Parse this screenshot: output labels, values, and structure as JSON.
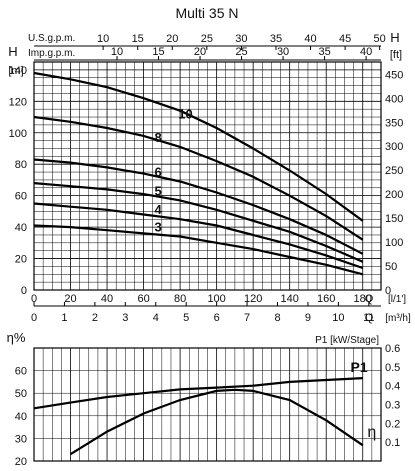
{
  "chart_data": [
    {
      "type": "line",
      "title": "Multi 35 N",
      "y_left_label": "H",
      "y_left_unit": "[m]",
      "y_right_label": "H",
      "y_right_unit": "[ft]",
      "x_label": "Q",
      "x_unit_lpm": "[l/1']",
      "x_unit_m3h": "[m³/h]",
      "usgpm_label": "U.S.g.p.m.",
      "impgpm_label": "Imp.g.p.m.",
      "ylim": [
        0,
        145
      ],
      "xlim": [
        0,
        190
      ],
      "y_ticks": [
        0,
        20,
        40,
        60,
        80,
        100,
        120,
        140
      ],
      "y_ticks_ft": [
        0,
        50,
        100,
        150,
        200,
        250,
        300,
        350,
        400,
        450
      ],
      "x_ticks_lpm": [
        0,
        20,
        40,
        60,
        80,
        100,
        120,
        140,
        160,
        180
      ],
      "x_ticks_m3h": [
        0,
        1,
        2,
        3,
        4,
        5,
        6,
        7,
        8,
        9,
        10,
        11
      ],
      "x_ticks_usgpm": [
        10,
        15,
        20,
        25,
        30,
        35,
        40,
        45,
        50
      ],
      "x_ticks_impgpm": [
        10,
        15,
        20,
        25,
        30,
        35,
        40
      ],
      "grid": true,
      "series": [
        {
          "name": "10",
          "x": [
            0,
            20,
            40,
            60,
            80,
            100,
            120,
            140,
            160,
            180
          ],
          "values": [
            138,
            134,
            129,
            122,
            114,
            103,
            90,
            76,
            61,
            44
          ]
        },
        {
          "name": "8",
          "x": [
            0,
            20,
            40,
            60,
            80,
            100,
            120,
            140,
            160,
            180
          ],
          "values": [
            110,
            107,
            103,
            98,
            91,
            82,
            72,
            60,
            47,
            32
          ]
        },
        {
          "name": "6",
          "x": [
            0,
            20,
            40,
            60,
            80,
            100,
            120,
            140,
            160,
            180
          ],
          "values": [
            83,
            81,
            78,
            74,
            69,
            62,
            54,
            45,
            35,
            23
          ]
        },
        {
          "name": "5",
          "x": [
            0,
            20,
            40,
            60,
            80,
            100,
            120,
            140,
            160,
            180
          ],
          "values": [
            68,
            66,
            64,
            61,
            57,
            51,
            44,
            37,
            28,
            18
          ]
        },
        {
          "name": "4",
          "x": [
            0,
            20,
            40,
            60,
            80,
            100,
            120,
            140,
            160,
            180
          ],
          "values": [
            55,
            53,
            51,
            48,
            45,
            41,
            35,
            29,
            22,
            14
          ]
        },
        {
          "name": "3",
          "x": [
            0,
            20,
            40,
            60,
            80,
            100,
            120,
            140,
            160,
            180
          ],
          "values": [
            41,
            40,
            38,
            36,
            34,
            30,
            26,
            21,
            16,
            10
          ]
        }
      ]
    },
    {
      "type": "line",
      "y_left_label": "η%",
      "y_right_label": "P1 [kW/Stage]",
      "ylim": [
        20,
        70
      ],
      "ylim_right": [
        0,
        0.6
      ],
      "y_ticks": [
        20,
        30,
        40,
        50,
        60
      ],
      "y_ticks_right": [
        0.1,
        0.2,
        0.3,
        0.4,
        0.5,
        0.6
      ],
      "xlim": [
        0,
        190
      ],
      "grid": true,
      "series": [
        {
          "name": "η",
          "axis": "left",
          "x": [
            20,
            40,
            60,
            80,
            100,
            110,
            120,
            140,
            160,
            180
          ],
          "values": [
            23,
            33,
            41,
            47,
            51,
            51.5,
            51,
            47,
            38,
            27
          ]
        },
        {
          "name": "P1",
          "axis": "right",
          "x": [
            0,
            20,
            40,
            60,
            80,
            100,
            120,
            140,
            160,
            180
          ],
          "values": [
            0.28,
            0.31,
            0.34,
            0.36,
            0.38,
            0.39,
            0.4,
            0.42,
            0.43,
            0.44
          ]
        }
      ]
    }
  ]
}
